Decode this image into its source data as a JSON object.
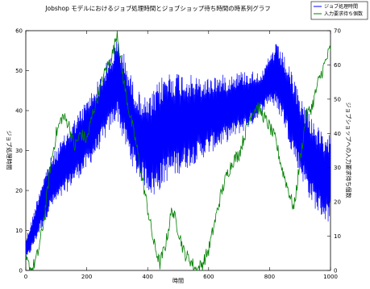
{
  "chart_data": {
    "type": "line",
    "title": "Jobshop モデルにおけるジョブ処理時間とジョブショップ待ち時間の時系列グラフ",
    "xlabel": "時間",
    "ylabel_left": "ジョブ処理時間",
    "ylabel_right": "ジョブショップへの入力要求待ち個数",
    "xlim": [
      0,
      1000
    ],
    "ylim_left": [
      0,
      60
    ],
    "ylim_right": [
      0,
      70
    ],
    "x_ticks": [
      "0",
      "200",
      "400",
      "600",
      "800",
      "1000"
    ],
    "y_left_ticks": [
      "0",
      "10",
      "20",
      "30",
      "40",
      "50",
      "60"
    ],
    "y_right_ticks": [
      "0",
      "10",
      "20",
      "30",
      "40",
      "50",
      "60",
      "70"
    ],
    "grid": false,
    "legend_placement": "top-right",
    "series": [
      {
        "name": "ジョブ処理時間",
        "axis": "left",
        "color": "#0000ff",
        "style": "dense oscillating band",
        "x": [
          0,
          20,
          50,
          80,
          120,
          160,
          200,
          240,
          270,
          300,
          320,
          340,
          360,
          380,
          400,
          420,
          440,
          460,
          500,
          540,
          580,
          620,
          660,
          700,
          740,
          780,
          800,
          820,
          840,
          860,
          880,
          900,
          930,
          960,
          990,
          1000
        ],
        "lower": [
          2,
          5,
          10,
          15,
          18,
          22,
          25,
          30,
          34,
          38,
          32,
          28,
          24,
          22,
          20,
          18,
          20,
          22,
          24,
          26,
          28,
          30,
          32,
          34,
          36,
          40,
          42,
          40,
          38,
          33,
          28,
          24,
          18,
          14,
          12,
          12
        ],
        "upper": [
          8,
          13,
          22,
          28,
          33,
          38,
          43,
          48,
          53,
          58,
          55,
          50,
          46,
          44,
          43,
          45,
          48,
          50,
          50,
          49,
          48,
          49,
          49,
          50,
          50,
          50,
          54,
          57,
          55,
          52,
          48,
          44,
          40,
          36,
          32,
          40
        ]
      },
      {
        "name": "入力要求待ち個数",
        "axis": "right",
        "color": "#008000",
        "x": [
          0,
          20,
          40,
          60,
          80,
          100,
          120,
          140,
          160,
          180,
          200,
          220,
          240,
          260,
          280,
          290,
          300,
          310,
          320,
          340,
          360,
          380,
          400,
          420,
          440,
          460,
          480,
          500,
          520,
          540,
          560,
          580,
          600,
          620,
          640,
          660,
          680,
          700,
          720,
          740,
          760,
          780,
          800,
          820,
          840,
          860,
          880,
          900,
          920,
          940,
          960,
          980,
          1000
        ],
        "y": [
          3,
          0,
          5,
          15,
          30,
          40,
          45,
          43,
          36,
          40,
          38,
          46,
          52,
          58,
          62,
          65,
          70,
          62,
          56,
          46,
          38,
          28,
          18,
          8,
          2,
          8,
          18,
          12,
          5,
          3,
          0,
          2,
          6,
          14,
          22,
          28,
          32,
          34,
          40,
          46,
          48,
          45,
          42,
          38,
          30,
          24,
          18,
          32,
          45,
          48,
          55,
          60,
          65
        ]
      }
    ]
  }
}
